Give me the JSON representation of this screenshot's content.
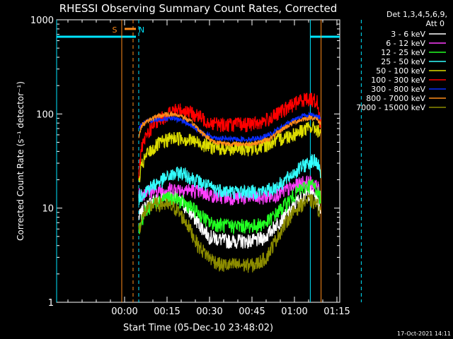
{
  "chart_data": {
    "type": "line",
    "title": "RHESSI Observing Summary Count Rates, Corrected",
    "xlabel": "Start Time (05-Dec-10 23:48:02)",
    "ylabel": "Corrected Count Rate (s⁻¹ detector⁻¹)",
    "x_unit": "minutes after 23:48:02",
    "xlim": [
      -12,
      88
    ],
    "ylim": [
      1,
      1000
    ],
    "yscale": "log",
    "x_ticks": [
      {
        "v": 12,
        "label": "00:00"
      },
      {
        "v": 27,
        "label": "00:15"
      },
      {
        "v": 42,
        "label": "00:30"
      },
      {
        "v": 57,
        "label": "00:45"
      },
      {
        "v": 72,
        "label": "01:00"
      },
      {
        "v": 87,
        "label": "01:15"
      }
    ],
    "y_ticks": [
      {
        "v": 1,
        "label": "1"
      },
      {
        "v": 10,
        "label": "10"
      },
      {
        "v": 100,
        "label": "100"
      },
      {
        "v": 1000,
        "label": "1000"
      }
    ],
    "legend": {
      "header": [
        "Det 1,3,4,5,6,9,",
        "Att 0"
      ],
      "placement": "right"
    },
    "annotations": [
      {
        "label": "S",
        "x": 12,
        "color": "#ff8c1a"
      },
      {
        "label": "N",
        "x": 16,
        "color": "#00e5ff"
      }
    ],
    "markers": {
      "night_bars": [
        {
          "x0": -12,
          "x1": 16,
          "y": 660
        },
        {
          "x0": 77.6,
          "x1": 96,
          "y": 660
        }
      ],
      "saa_bar": {
        "x0": 12,
        "x1": 16,
        "y": 800
      },
      "vlines_solid": [
        {
          "x": -12,
          "color": "#00e5ff"
        },
        {
          "x": 11,
          "color": "#ff8c1a"
        },
        {
          "x": 77.6,
          "color": "#00e5ff"
        },
        {
          "x": 81.4,
          "color": "#ff8c1a"
        }
      ],
      "vlines_dashed": [
        {
          "x": 15,
          "color": "#ff8c1a"
        },
        {
          "x": 17,
          "color": "#00e5ff"
        },
        {
          "x": 95.6,
          "color": "#00e5ff"
        }
      ]
    },
    "data_range": [
      17,
      81.3
    ],
    "series": [
      {
        "name": "3 - 6 keV",
        "color": "#ffffff",
        "x": [
          17,
          19,
          22,
          26,
          30,
          34,
          38,
          42,
          48,
          54,
          58,
          62,
          66,
          70,
          73,
          76,
          78,
          80,
          81
        ],
        "values": [
          8,
          10,
          12,
          13.5,
          13,
          10,
          7,
          5,
          4.5,
          4.5,
          4.5,
          5,
          7,
          9,
          12,
          14,
          15,
          13,
          10
        ]
      },
      {
        "name": "6 - 12 keV",
        "color": "#ff3fff",
        "x": [
          17,
          20,
          24,
          28,
          32,
          36,
          40,
          44,
          50,
          56,
          60,
          64,
          68,
          72,
          75,
          78,
          80,
          81
        ],
        "values": [
          14,
          15,
          15.5,
          16,
          16,
          15.5,
          14.5,
          13.5,
          13,
          13,
          13,
          13.5,
          15,
          17,
          19,
          18.5,
          17,
          15
        ]
      },
      {
        "name": "12 - 25 keV",
        "color": "#22ff22",
        "x": [
          17,
          19,
          22,
          26,
          30,
          34,
          38,
          42,
          48,
          54,
          58,
          62,
          66,
          70,
          73,
          76,
          78,
          80,
          81
        ],
        "values": [
          6,
          9,
          11,
          13,
          12.5,
          11,
          9,
          7,
          6.5,
          6.5,
          6.5,
          7,
          9,
          12,
          15,
          17,
          18,
          16,
          13
        ]
      },
      {
        "name": "25 - 50 keV",
        "color": "#33ffff",
        "x": [
          17,
          20,
          24,
          28,
          32,
          36,
          40,
          44,
          50,
          56,
          60,
          64,
          68,
          72,
          75,
          78,
          80,
          81
        ],
        "values": [
          13,
          16,
          19,
          22,
          24,
          21,
          18,
          16,
          15,
          15,
          15,
          16,
          19,
          24,
          28,
          32,
          31,
          25
        ]
      },
      {
        "name": "50 - 100 keV",
        "color": "#dddd00",
        "x": [
          17,
          18,
          20,
          24,
          28,
          32,
          36,
          40,
          44,
          50,
          56,
          60,
          64,
          68,
          72,
          75,
          78,
          80,
          81
        ],
        "values": [
          18,
          28,
          38,
          48,
          55,
          56,
          52,
          48,
          44,
          43,
          43,
          45,
          50,
          56,
          62,
          68,
          72,
          70,
          60
        ]
      },
      {
        "name": "100 - 300 keV",
        "color": "#ff0000",
        "x": [
          17,
          18,
          20,
          22,
          24,
          27,
          30,
          32,
          34,
          38,
          42,
          46,
          50,
          56,
          60,
          64,
          68,
          72,
          75,
          78,
          80,
          81
        ],
        "values": [
          25,
          42,
          62,
          75,
          85,
          100,
          110,
          112,
          108,
          95,
          82,
          78,
          78,
          78,
          82,
          92,
          110,
          130,
          145,
          145,
          135,
          85
        ]
      },
      {
        "name": "300 - 800 keV",
        "color": "#0a2dff",
        "x": [
          17,
          18,
          20,
          24,
          28,
          32,
          36,
          40,
          44,
          50,
          56,
          60,
          64,
          68,
          72,
          75,
          78,
          80,
          81
        ],
        "values": [
          70,
          78,
          84,
          88,
          90,
          86,
          74,
          62,
          56,
          54,
          54,
          56,
          62,
          74,
          88,
          96,
          98,
          95,
          90
        ]
      },
      {
        "name": "800 - 7000 keV",
        "color": "#ff8c1a",
        "x": [
          17,
          18,
          20,
          24,
          28,
          32,
          36,
          40,
          44,
          50,
          56,
          60,
          64,
          68,
          72,
          75,
          78,
          80,
          81
        ],
        "values": [
          55,
          75,
          85,
          95,
          100,
          96,
          80,
          60,
          50,
          48,
          48,
          50,
          56,
          70,
          82,
          88,
          92,
          88,
          80
        ]
      },
      {
        "name": "7000 - 15000 keV",
        "color": "#8c8c00",
        "x": [
          17,
          19,
          22,
          26,
          30,
          34,
          38,
          42,
          46,
          50,
          54,
          58,
          62,
          66,
          70,
          73,
          76,
          78,
          80,
          81
        ],
        "values": [
          6,
          9,
          11,
          11,
          10,
          7,
          4,
          3,
          2.5,
          2.5,
          2.5,
          2.5,
          3,
          5,
          8,
          10,
          12,
          12,
          11,
          9
        ]
      }
    ]
  },
  "footer_date": "17-Oct-2021 14:11"
}
